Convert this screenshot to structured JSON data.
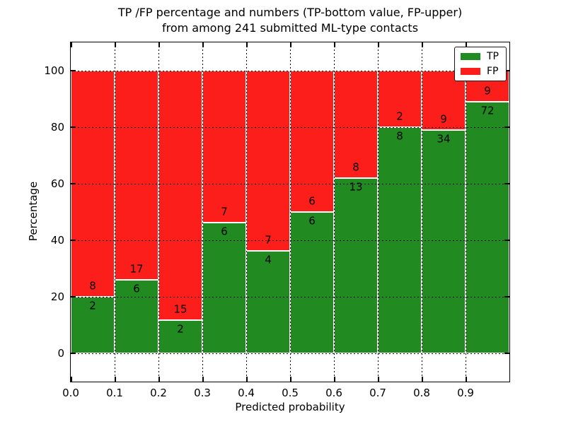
{
  "colors": {
    "tp_bar": "#218a21",
    "fp_bar": "#fc1e1a",
    "bar_edge": "#ffffff",
    "grid": "#000000",
    "text": "#000000",
    "background": "#ffffff"
  },
  "chart_data": {
    "type": "bar",
    "variant": "stacked-percentage",
    "title": "TP /FP percentage and numbers (TP-bottom value, FP-upper)",
    "subtitle": "from among 241 submitted ML-type contacts",
    "total_submitted_contacts": 241,
    "xlabel": "Predicted probability",
    "ylabel": "Percentage",
    "xlim": [
      0.0,
      1.0
    ],
    "ylim": [
      -10,
      110
    ],
    "xtick_labels": [
      "0.0",
      "0.1",
      "0.2",
      "0.3",
      "0.4",
      "0.5",
      "0.6",
      "0.7",
      "0.8",
      "0.9"
    ],
    "yticks": [
      0,
      20,
      40,
      60,
      80,
      100
    ],
    "grid": {
      "visible": true,
      "style": "dotted",
      "drawn_above_bars": true
    },
    "legend": {
      "position": "upper right",
      "items": [
        {
          "label": "TP",
          "color": "#218a21"
        },
        {
          "label": "FP",
          "color": "#fc1e1a"
        }
      ]
    },
    "bins": [
      {
        "range": [
          0.0,
          0.1
        ],
        "tp": 2,
        "fp": 8,
        "tp_pct": 20.0
      },
      {
        "range": [
          0.1,
          0.2
        ],
        "tp": 6,
        "fp": 17,
        "tp_pct": 26.09
      },
      {
        "range": [
          0.2,
          0.3
        ],
        "tp": 2,
        "fp": 15,
        "tp_pct": 11.76
      },
      {
        "range": [
          0.3,
          0.4
        ],
        "tp": 6,
        "fp": 7,
        "tp_pct": 46.15
      },
      {
        "range": [
          0.4,
          0.5
        ],
        "tp": 4,
        "fp": 7,
        "tp_pct": 36.36
      },
      {
        "range": [
          0.5,
          0.6
        ],
        "tp": 6,
        "fp": 6,
        "tp_pct": 50.0
      },
      {
        "range": [
          0.6,
          0.7
        ],
        "tp": 13,
        "fp": 8,
        "tp_pct": 61.9
      },
      {
        "range": [
          0.7,
          0.8
        ],
        "tp": 8,
        "fp": 2,
        "tp_pct": 80.0
      },
      {
        "range": [
          0.8,
          0.9
        ],
        "tp": 34,
        "fp": 9,
        "tp_pct": 79.07
      },
      {
        "range": [
          0.9,
          1.0
        ],
        "tp": 72,
        "fp": 9,
        "tp_pct": 88.89
      }
    ]
  }
}
